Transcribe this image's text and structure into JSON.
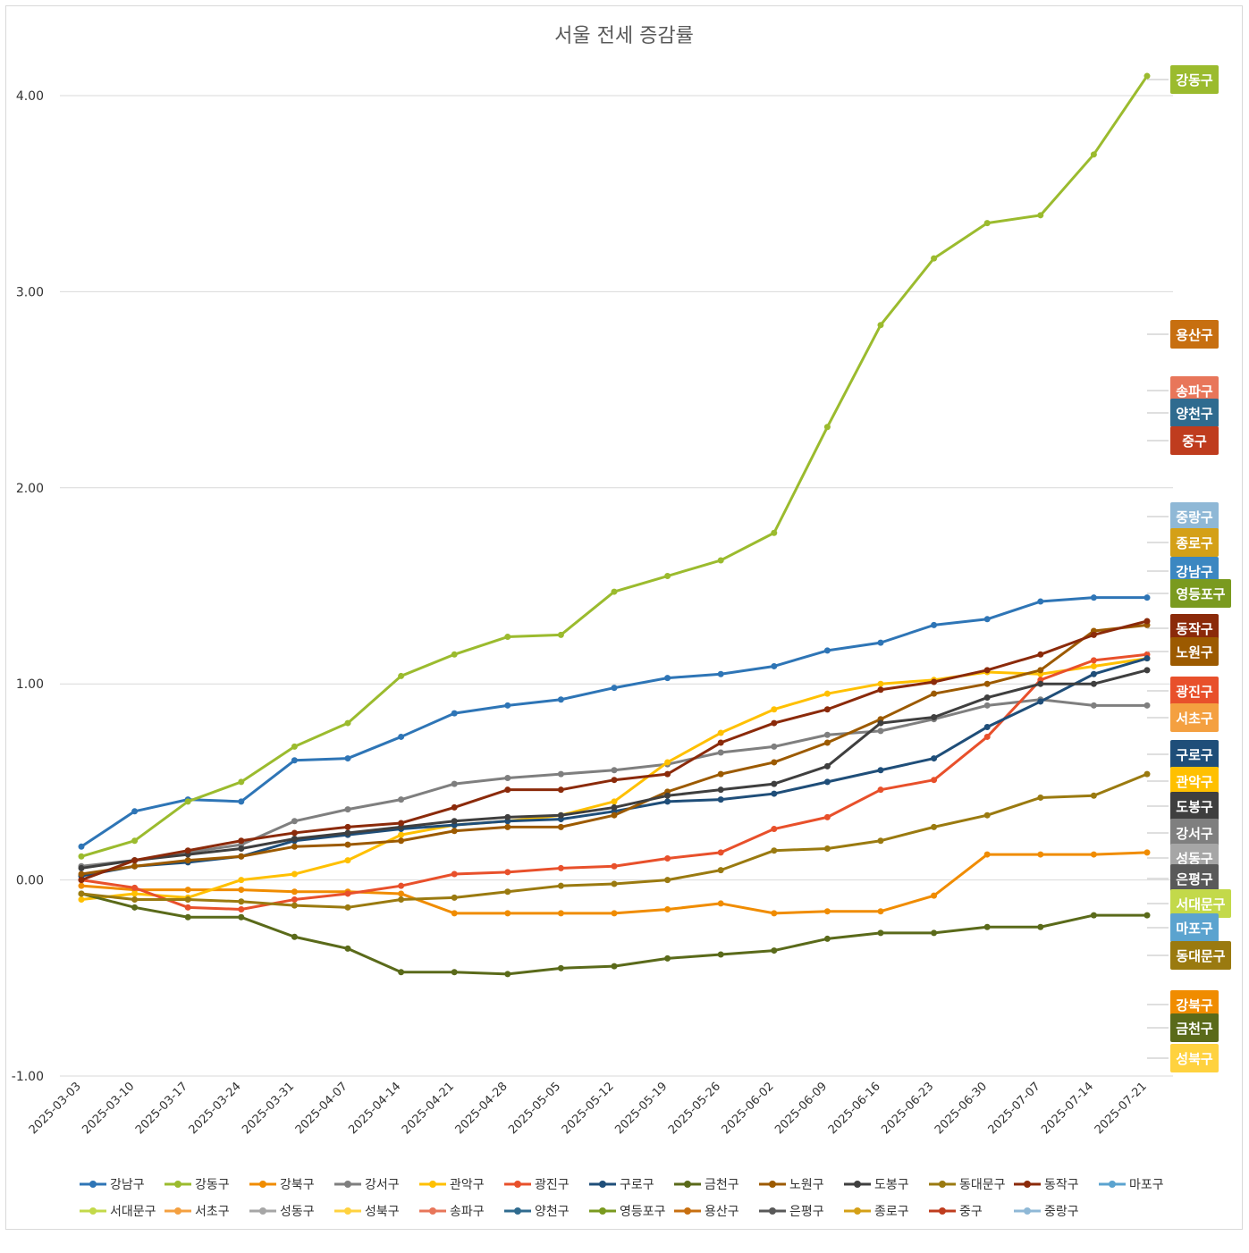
{
  "chart_data": {
    "type": "line",
    "title": "서울 전세 증감률",
    "xlabel": "",
    "ylabel": "",
    "ylim": [
      -1.0,
      4.0
    ],
    "yticks": [
      "4.00",
      "3.00",
      "2.00",
      "1.00",
      "0.00",
      "-1.00"
    ],
    "grid": true,
    "legend_position": "bottom",
    "x": [
      "2025-03-03",
      "2025-03-10",
      "2025-03-17",
      "2025-03-24",
      "2025-03-31",
      "2025-04-07",
      "2025-04-14",
      "2025-04-21",
      "2025-04-28",
      "2025-05-05",
      "2025-05-12",
      "2025-05-19",
      "2025-05-26",
      "2025-06-02",
      "2025-06-09",
      "2025-06-16",
      "2025-06-23",
      "2025-06-30",
      "2025-07-07",
      "2025-07-14",
      "2025-07-21"
    ],
    "series": [
      {
        "name": "강남구",
        "color": "#2e75b6",
        "values": [
          0.17,
          0.35,
          0.41,
          0.4,
          0.61,
          0.62,
          0.73,
          0.85,
          0.89,
          0.92,
          0.98,
          1.03,
          1.05,
          1.09,
          1.17,
          1.21,
          1.3,
          1.33,
          1.42,
          1.44,
          1.44
        ]
      },
      {
        "name": "강동구",
        "color": "#9bbb2e",
        "values": [
          0.12,
          0.2,
          0.4,
          0.5,
          0.68,
          0.8,
          1.04,
          1.15,
          1.24,
          1.25,
          1.47,
          1.55,
          1.63,
          1.77,
          2.31,
          2.83,
          3.17,
          3.35,
          3.39,
          3.7,
          4.1
        ]
      },
      {
        "name": "강북구",
        "color": "#f08c00",
        "values": [
          -0.03,
          -0.05,
          -0.05,
          -0.05,
          -0.06,
          -0.06,
          -0.07,
          -0.17,
          -0.17,
          -0.17,
          -0.17,
          -0.15,
          -0.12,
          -0.17,
          -0.16,
          -0.16,
          -0.08,
          0.13,
          0.13,
          0.13,
          0.14
        ]
      },
      {
        "name": "강서구",
        "color": "#7f7f7f",
        "values": [
          0.07,
          0.1,
          0.14,
          0.18,
          0.3,
          0.36,
          0.41,
          0.49,
          0.52,
          0.54,
          0.56,
          0.59,
          0.65,
          0.68,
          0.74,
          0.76,
          0.82,
          0.89,
          0.92,
          0.89,
          0.89
        ]
      },
      {
        "name": "관악구",
        "color": "#ffc000",
        "values": [
          -0.1,
          -0.07,
          -0.09,
          0.0,
          0.03,
          0.1,
          0.23,
          0.28,
          0.3,
          0.33,
          0.4,
          0.6,
          0.75,
          0.87,
          0.95,
          1.0,
          1.02,
          1.06,
          1.05,
          1.09,
          1.13
        ]
      },
      {
        "name": "광진구",
        "color": "#e8502b",
        "values": [
          0.0,
          -0.04,
          -0.14,
          -0.15,
          -0.1,
          -0.07,
          -0.03,
          0.03,
          0.04,
          0.06,
          0.07,
          0.11,
          0.14,
          0.26,
          0.32,
          0.46,
          0.51,
          0.73,
          1.02,
          1.12,
          1.15
        ]
      },
      {
        "name": "구로구",
        "color": "#1f4e79",
        "values": [
          0.02,
          0.07,
          0.09,
          0.12,
          0.2,
          0.23,
          0.26,
          0.28,
          0.3,
          0.31,
          0.35,
          0.4,
          0.41,
          0.44,
          0.5,
          0.56,
          0.62,
          0.78,
          0.91,
          1.05,
          1.13
        ]
      },
      {
        "name": "금천구",
        "color": "#5a6a1a",
        "values": [
          -0.07,
          -0.14,
          -0.19,
          -0.19,
          -0.29,
          -0.35,
          -0.47,
          -0.47,
          -0.48,
          -0.45,
          -0.44,
          -0.4,
          -0.38,
          -0.36,
          -0.3,
          -0.27,
          -0.27,
          -0.24,
          -0.24,
          -0.18,
          -0.18
        ]
      },
      {
        "name": "노원구",
        "color": "#9c5a00",
        "values": [
          0.03,
          0.07,
          0.1,
          0.12,
          0.17,
          0.18,
          0.2,
          0.25,
          0.27,
          0.27,
          0.33,
          0.45,
          0.54,
          0.6,
          0.7,
          0.82,
          0.95,
          1.0,
          1.07,
          1.27,
          1.3
        ]
      },
      {
        "name": "도봉구",
        "color": "#3f3f3f",
        "values": [
          0.06,
          0.1,
          0.13,
          0.16,
          0.21,
          0.24,
          0.27,
          0.3,
          0.32,
          0.33,
          0.37,
          0.43,
          0.46,
          0.49,
          0.58,
          0.8,
          0.83,
          0.93,
          1.0,
          1.0,
          1.07
        ]
      },
      {
        "name": "동대문구",
        "color": "#9a7a10",
        "values": [
          -0.07,
          -0.1,
          -0.1,
          -0.11,
          -0.13,
          -0.14,
          -0.1,
          -0.09,
          -0.06,
          -0.03,
          -0.02,
          0.0,
          0.05,
          0.15,
          0.16,
          0.2,
          0.27,
          0.33,
          0.42,
          0.43,
          0.54
        ]
      },
      {
        "name": "동작구",
        "color": "#8b2a0a",
        "values": [
          0.0,
          0.1,
          0.15,
          0.2,
          0.24,
          0.27,
          0.29,
          0.37,
          0.46,
          0.46,
          0.51,
          0.54,
          0.7,
          0.8,
          0.87,
          0.97,
          1.01,
          1.07,
          1.15,
          1.25,
          1.32
        ]
      }
    ]
  },
  "end_labels": {
    "강동구": "강동구",
    "용산구": "용산구",
    "송파구": "송파구",
    "양천구": "양천구",
    "중구": "중구",
    "중랑구": "중랑구",
    "종로구": "종로구",
    "강남구": "강남구",
    "영등포구": "영등포구",
    "동작구": "동작구",
    "노원구": "노원구",
    "광진구": "광진구",
    "서초구": "서초구",
    "구로구": "구로구",
    "관악구": "관악구",
    "도봉구": "도봉구",
    "강서구": "강서구",
    "성동구": "성동구",
    "은평구": "은평구",
    "서대문구": "서대문구",
    "마포구": "마포구",
    "동대문구": "동대문구",
    "강북구": "강북구",
    "금천구": "금천구",
    "성북구": "성북구"
  }
}
